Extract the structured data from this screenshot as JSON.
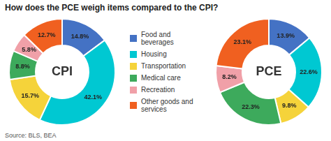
{
  "chart_data": {
    "type": "doughnut",
    "title": "How does the PCE weigh items compared to the CPI?",
    "categories": [
      "Food and\nbeverages",
      "Housing",
      "Transportation",
      "Medical care",
      "Recreation",
      "Other goods and\nservices"
    ],
    "colors": [
      "#4472C4",
      "#00C8D2",
      "#F5D33A",
      "#3DAA5C",
      "#F0A0A8",
      "#F06020"
    ],
    "series": [
      {
        "name": "CPI",
        "values": [
          14.8,
          42.1,
          15.7,
          8.8,
          5.8,
          12.7
        ],
        "value_labels": [
          "14.8%",
          "42.1%",
          "15.7%",
          "8.8%",
          "5.8%",
          "12.7%"
        ]
      },
      {
        "name": "PCE",
        "values": [
          13.9,
          22.6,
          9.8,
          22.3,
          8.2,
          23.1
        ],
        "value_labels": [
          "13.9%",
          "22.6%",
          "9.8%",
          "22.3%",
          "8.2%",
          "23.1%"
        ]
      }
    ],
    "data_labels": true,
    "legend": "center",
    "annotations": [
      "Source: BLS, BEA"
    ]
  }
}
